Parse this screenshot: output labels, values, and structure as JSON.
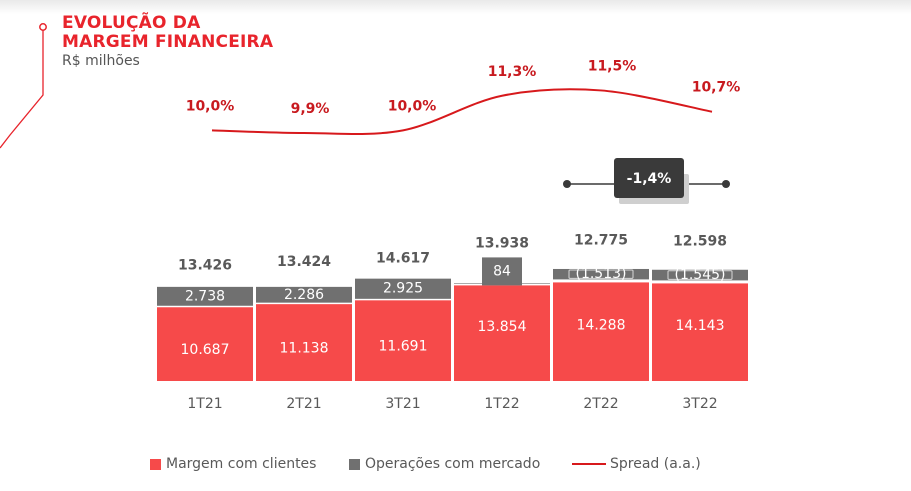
{
  "header": {
    "title_line1": "EVOLUÇÃO DA",
    "title_line2": "MARGEM FINANCEIRA",
    "subtitle": "R$ milhões"
  },
  "colors": {
    "client_margin": "#f64a4a",
    "market_ops": "#707070",
    "spread": "#d7191c",
    "total_label": "#595959",
    "spread_label": "#c81a1f"
  },
  "chart_data": {
    "type": "bar",
    "stacked": true,
    "categories": [
      "1T21",
      "2T21",
      "3T21",
      "1T22",
      "2T22",
      "3T22"
    ],
    "series": [
      {
        "name": "Margem com clientes",
        "values": [
          10687,
          11138,
          11691,
          13854,
          14288,
          14143
        ],
        "labels": [
          "10.687",
          "11.138",
          "11.691",
          "13.854",
          "14.288",
          "14.143"
        ]
      },
      {
        "name": "Operações com mercado",
        "values": [
          2738,
          2286,
          2925,
          84,
          -1513,
          -1545
        ],
        "labels": [
          "2.738",
          "2.286",
          "2.925",
          "84",
          "(1.513)",
          "(1.545)"
        ]
      }
    ],
    "totals": {
      "values": [
        13426,
        13424,
        14617,
        13938,
        12775,
        12598
      ],
      "labels": [
        "13.426",
        "13.424",
        "14.617",
        "13.938",
        "12.775",
        "12.598"
      ]
    },
    "spread": {
      "name": "Spread (a.a.)",
      "values": [
        10.0,
        9.9,
        10.0,
        11.3,
        11.5,
        10.7
      ],
      "labels": [
        "10,0%",
        "9,9%",
        "10,0%",
        "11,3%",
        "11,5%",
        "10,7%"
      ]
    },
    "variation_badge": "-1,4%",
    "legend_position": "bottom"
  }
}
